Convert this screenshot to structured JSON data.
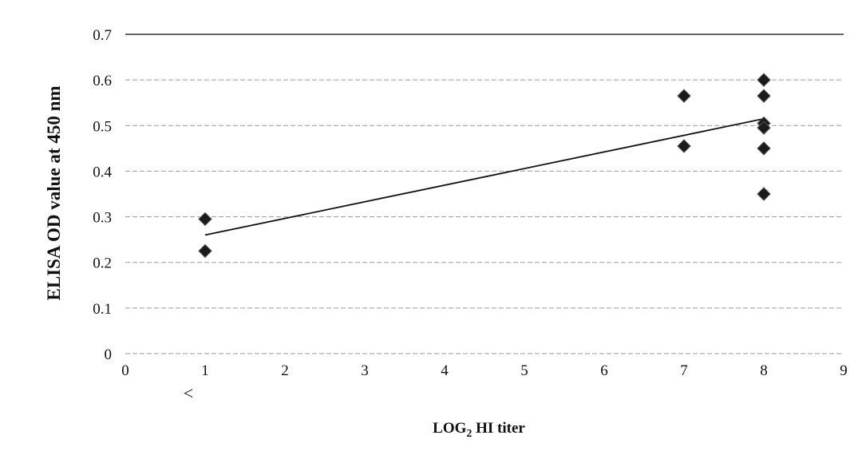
{
  "chart_data": {
    "type": "scatter",
    "title": "",
    "xlabel_prefix": "LOG",
    "xlabel_sub": "2",
    "xlabel_suffix": " HI titer",
    "ylabel": "ELISA  OD value at 450 nm",
    "xlim": [
      0,
      9
    ],
    "ylim": [
      0,
      0.7
    ],
    "x_ticks": [
      "0",
      "1",
      "2",
      "3",
      "4",
      "5",
      "6",
      "7",
      "8",
      "9"
    ],
    "y_ticks": [
      "0",
      "0.1",
      "0.2",
      "0.3",
      "0.4",
      "0.5",
      "0.6",
      "0.7"
    ],
    "grid": "horizontal",
    "annotation": "<",
    "points": [
      {
        "x": 1,
        "y": 0.295
      },
      {
        "x": 1,
        "y": 0.225
      },
      {
        "x": 7,
        "y": 0.565
      },
      {
        "x": 7,
        "y": 0.455
      },
      {
        "x": 8,
        "y": 0.6
      },
      {
        "x": 8,
        "y": 0.565
      },
      {
        "x": 8,
        "y": 0.505
      },
      {
        "x": 8,
        "y": 0.495
      },
      {
        "x": 8,
        "y": 0.45
      },
      {
        "x": 8,
        "y": 0.35
      }
    ],
    "trendline": {
      "x": [
        1,
        8
      ],
      "y": [
        0.26,
        0.515
      ]
    },
    "marker_color": "#1a1a1a",
    "line_color": "#111111"
  }
}
